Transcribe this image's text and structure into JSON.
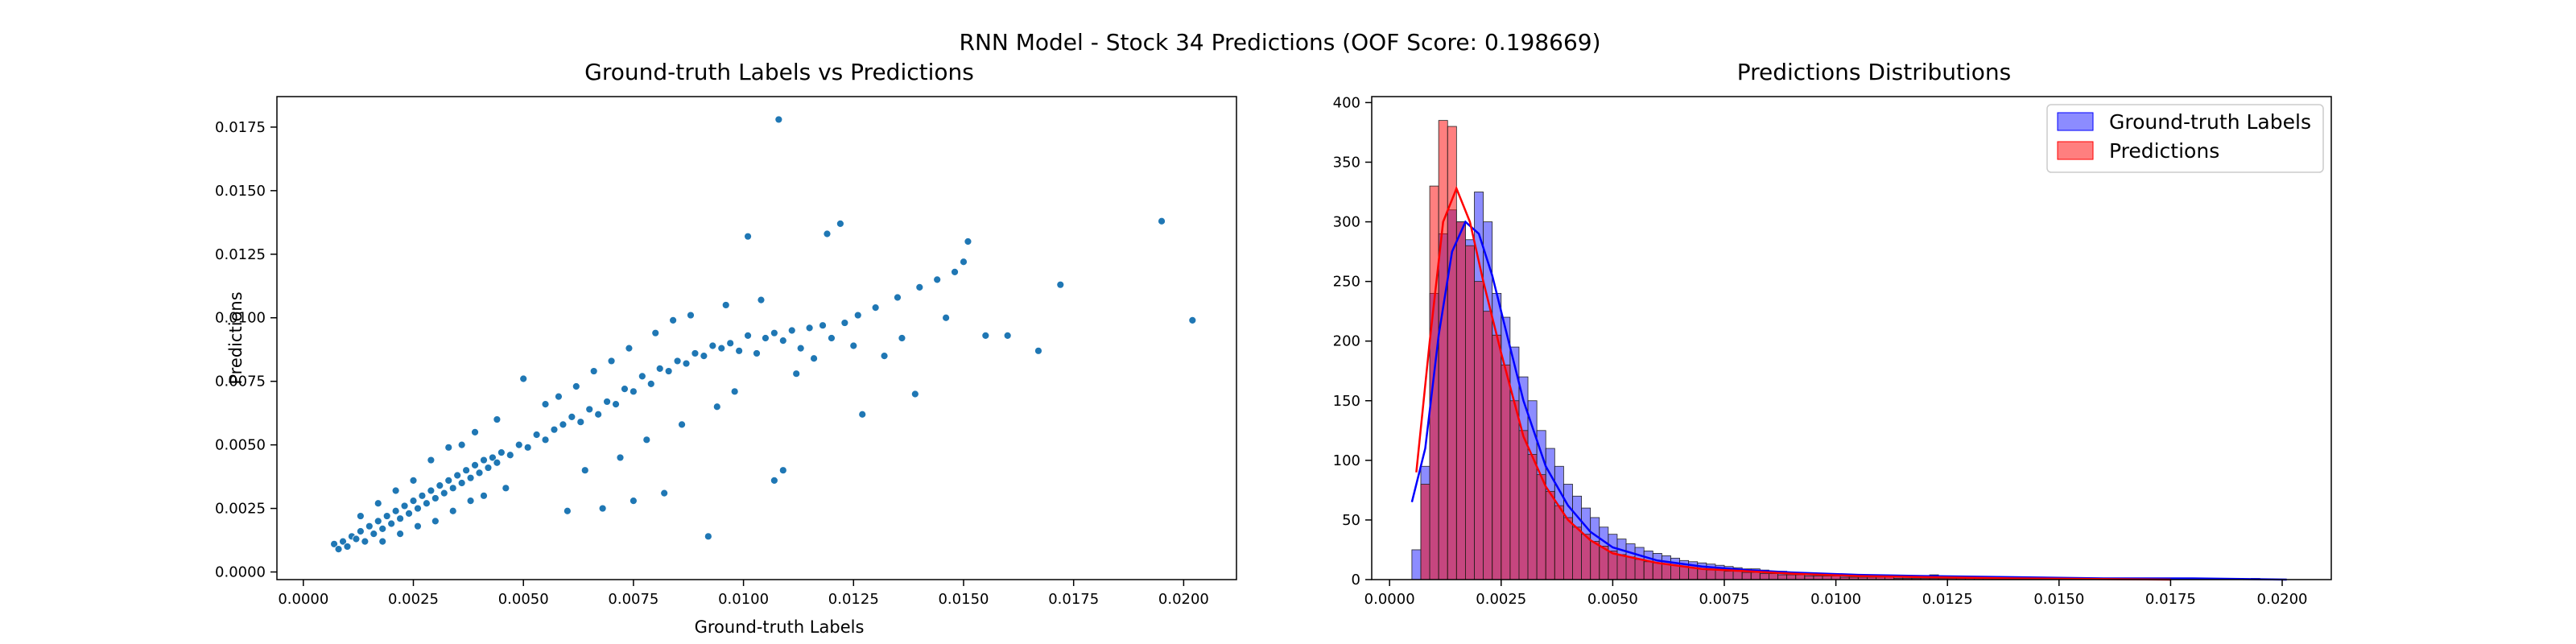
{
  "figure": {
    "suptitle": "RNN Model - Stock 34 Predictions (OOF Score: 0.198669)"
  },
  "chart_data": [
    {
      "type": "scatter",
      "title": "Ground-truth Labels vs Predictions",
      "xlabel": "Ground-truth Labels",
      "ylabel": "Predictions",
      "xlim": [
        -0.0006,
        0.0212
      ],
      "ylim": [
        -0.0003,
        0.0187
      ],
      "xticks": [
        0.0,
        0.0025,
        0.005,
        0.0075,
        0.01,
        0.0125,
        0.015,
        0.0175,
        0.02
      ],
      "xtick_labels": [
        "0.0000",
        "0.0025",
        "0.0050",
        "0.0075",
        "0.0100",
        "0.0125",
        "0.0150",
        "0.0175",
        "0.0200"
      ],
      "yticks": [
        0.0,
        0.0025,
        0.005,
        0.0075,
        0.01,
        0.0125,
        0.015,
        0.0175
      ],
      "ytick_labels": [
        "0.0000",
        "0.0025",
        "0.0050",
        "0.0075",
        "0.0100",
        "0.0125",
        "0.0150",
        "0.0175"
      ],
      "grid": false,
      "color": "#1f77b4",
      "points": [
        [
          0.0007,
          0.0011
        ],
        [
          0.0008,
          0.0009
        ],
        [
          0.0009,
          0.0012
        ],
        [
          0.001,
          0.001
        ],
        [
          0.0011,
          0.0014
        ],
        [
          0.0012,
          0.0013
        ],
        [
          0.0013,
          0.0016
        ],
        [
          0.0014,
          0.0012
        ],
        [
          0.0015,
          0.0018
        ],
        [
          0.0016,
          0.0015
        ],
        [
          0.0017,
          0.002
        ],
        [
          0.0018,
          0.0017
        ],
        [
          0.0019,
          0.0022
        ],
        [
          0.002,
          0.0019
        ],
        [
          0.0021,
          0.0024
        ],
        [
          0.0022,
          0.0021
        ],
        [
          0.0023,
          0.0026
        ],
        [
          0.0024,
          0.0023
        ],
        [
          0.0025,
          0.0028
        ],
        [
          0.0026,
          0.0025
        ],
        [
          0.0027,
          0.003
        ],
        [
          0.0028,
          0.0027
        ],
        [
          0.0029,
          0.0032
        ],
        [
          0.003,
          0.0029
        ],
        [
          0.0031,
          0.0034
        ],
        [
          0.0032,
          0.0031
        ],
        [
          0.0033,
          0.0036
        ],
        [
          0.0034,
          0.0033
        ],
        [
          0.0035,
          0.0038
        ],
        [
          0.0036,
          0.0035
        ],
        [
          0.0037,
          0.004
        ],
        [
          0.0038,
          0.0037
        ],
        [
          0.0039,
          0.0042
        ],
        [
          0.004,
          0.0039
        ],
        [
          0.0041,
          0.0044
        ],
        [
          0.0042,
          0.0041
        ],
        [
          0.0043,
          0.0045
        ],
        [
          0.0044,
          0.0043
        ],
        [
          0.0045,
          0.0047
        ],
        [
          0.0047,
          0.0046
        ],
        [
          0.0049,
          0.005
        ],
        [
          0.0051,
          0.0049
        ],
        [
          0.0053,
          0.0054
        ],
        [
          0.0055,
          0.0052
        ],
        [
          0.0057,
          0.0056
        ],
        [
          0.0059,
          0.0058
        ],
        [
          0.0061,
          0.0061
        ],
        [
          0.0063,
          0.0059
        ],
        [
          0.0065,
          0.0064
        ],
        [
          0.0067,
          0.0062
        ],
        [
          0.0069,
          0.0067
        ],
        [
          0.0071,
          0.0066
        ],
        [
          0.0073,
          0.0072
        ],
        [
          0.0075,
          0.0071
        ],
        [
          0.0077,
          0.0077
        ],
        [
          0.0079,
          0.0074
        ],
        [
          0.0081,
          0.008
        ],
        [
          0.0083,
          0.0079
        ],
        [
          0.0085,
          0.0083
        ],
        [
          0.0087,
          0.0082
        ],
        [
          0.0089,
          0.0086
        ],
        [
          0.0091,
          0.0085
        ],
        [
          0.0093,
          0.0089
        ],
        [
          0.0095,
          0.0088
        ],
        [
          0.0097,
          0.009
        ],
        [
          0.0099,
          0.0087
        ],
        [
          0.0101,
          0.0093
        ],
        [
          0.0103,
          0.0086
        ],
        [
          0.0105,
          0.0092
        ],
        [
          0.0107,
          0.0094
        ],
        [
          0.0109,
          0.0091
        ],
        [
          0.0111,
          0.0095
        ],
        [
          0.0113,
          0.0088
        ],
        [
          0.0115,
          0.0096
        ],
        [
          0.0118,
          0.0097
        ],
        [
          0.012,
          0.0092
        ],
        [
          0.0123,
          0.0098
        ],
        [
          0.0126,
          0.0101
        ],
        [
          0.013,
          0.0104
        ],
        [
          0.0135,
          0.0108
        ],
        [
          0.014,
          0.0112
        ],
        [
          0.0144,
          0.0115
        ],
        [
          0.0148,
          0.0118
        ],
        [
          0.015,
          0.0122
        ],
        [
          0.0155,
          0.0093
        ],
        [
          0.016,
          0.0093
        ],
        [
          0.0167,
          0.0087
        ],
        [
          0.0172,
          0.0113
        ],
        [
          0.0195,
          0.0138
        ],
        [
          0.0202,
          0.0099
        ],
        [
          0.0108,
          0.0178
        ],
        [
          0.0101,
          0.0132
        ],
        [
          0.0119,
          0.0133
        ],
        [
          0.0122,
          0.0137
        ],
        [
          0.0151,
          0.013
        ],
        [
          0.0092,
          0.0014
        ],
        [
          0.0109,
          0.004
        ],
        [
          0.0107,
          0.0036
        ],
        [
          0.0139,
          0.007
        ],
        [
          0.0127,
          0.0062
        ],
        [
          0.0075,
          0.0028
        ],
        [
          0.0082,
          0.0031
        ],
        [
          0.0068,
          0.0025
        ],
        [
          0.006,
          0.0024
        ],
        [
          0.0055,
          0.0066
        ],
        [
          0.005,
          0.0076
        ],
        [
          0.0044,
          0.006
        ],
        [
          0.0039,
          0.0055
        ],
        [
          0.0033,
          0.0049
        ],
        [
          0.0029,
          0.0044
        ],
        [
          0.0025,
          0.0036
        ],
        [
          0.0021,
          0.0032
        ],
        [
          0.0017,
          0.0027
        ],
        [
          0.0013,
          0.0022
        ],
        [
          0.0036,
          0.005
        ],
        [
          0.0041,
          0.003
        ],
        [
          0.0046,
          0.0033
        ],
        [
          0.0038,
          0.0028
        ],
        [
          0.0034,
          0.0024
        ],
        [
          0.003,
          0.002
        ],
        [
          0.0026,
          0.0018
        ],
        [
          0.0022,
          0.0015
        ],
        [
          0.0018,
          0.0012
        ],
        [
          0.0064,
          0.004
        ],
        [
          0.0072,
          0.0045
        ],
        [
          0.0078,
          0.0052
        ],
        [
          0.0086,
          0.0058
        ],
        [
          0.0094,
          0.0065
        ],
        [
          0.0098,
          0.0071
        ],
        [
          0.0112,
          0.0078
        ],
        [
          0.0116,
          0.0084
        ],
        [
          0.0125,
          0.0089
        ],
        [
          0.0132,
          0.0085
        ],
        [
          0.0136,
          0.0092
        ],
        [
          0.0146,
          0.01
        ],
        [
          0.0058,
          0.0069
        ],
        [
          0.0062,
          0.0073
        ],
        [
          0.0066,
          0.0079
        ],
        [
          0.007,
          0.0083
        ],
        [
          0.0074,
          0.0088
        ],
        [
          0.008,
          0.0094
        ],
        [
          0.0084,
          0.0099
        ],
        [
          0.0088,
          0.0101
        ],
        [
          0.0096,
          0.0105
        ],
        [
          0.0104,
          0.0107
        ]
      ]
    },
    {
      "type": "histogram",
      "title": "Predictions Distributions",
      "xlabel": "",
      "ylabel": "",
      "xlim": [
        -0.0004,
        0.0211
      ],
      "ylim": [
        0,
        405
      ],
      "xticks": [
        0.0,
        0.0025,
        0.005,
        0.0075,
        0.01,
        0.0125,
        0.015,
        0.0175,
        0.02
      ],
      "xtick_labels": [
        "0.0000",
        "0.0025",
        "0.0050",
        "0.0075",
        "0.0100",
        "0.0125",
        "0.0150",
        "0.0175",
        "0.0200"
      ],
      "yticks": [
        0,
        50,
        100,
        150,
        200,
        250,
        300,
        350,
        400
      ],
      "ytick_labels": [
        "0",
        "50",
        "100",
        "150",
        "200",
        "250",
        "300",
        "350",
        "400"
      ],
      "grid": false,
      "legend_position": "top-right",
      "bin_start": 0.0005,
      "bin_width": 0.0002,
      "series": [
        {
          "name": "Ground-truth Labels",
          "color": "#0000ff",
          "kde": [
            [
              0.0005,
              65
            ],
            [
              0.0008,
              110
            ],
            [
              0.0011,
              205
            ],
            [
              0.0014,
              275
            ],
            [
              0.0017,
              300
            ],
            [
              0.002,
              290
            ],
            [
              0.0023,
              255
            ],
            [
              0.0026,
              210
            ],
            [
              0.003,
              150
            ],
            [
              0.0035,
              95
            ],
            [
              0.004,
              62
            ],
            [
              0.0045,
              40
            ],
            [
              0.005,
              27
            ],
            [
              0.006,
              16
            ],
            [
              0.007,
              11
            ],
            [
              0.008,
              8
            ],
            [
              0.009,
              6
            ],
            [
              0.0105,
              4
            ],
            [
              0.012,
              3
            ],
            [
              0.014,
              2
            ],
            [
              0.016,
              1
            ],
            [
              0.018,
              1
            ],
            [
              0.0201,
              0
            ]
          ],
          "counts": [
            25,
            95,
            240,
            290,
            310,
            300,
            285,
            325,
            300,
            240,
            220,
            195,
            170,
            150,
            125,
            110,
            95,
            80,
            70,
            60,
            52,
            44,
            38,
            34,
            30,
            27,
            24,
            22,
            20,
            18,
            16,
            15,
            14,
            13,
            12,
            11,
            10,
            9,
            9,
            8,
            7,
            7,
            6,
            6,
            5,
            5,
            5,
            4,
            4,
            4,
            3,
            3,
            3,
            3,
            3,
            2,
            2,
            2,
            4,
            2,
            2,
            2,
            1,
            1,
            1,
            1,
            1,
            1,
            1,
            1,
            1,
            1,
            1,
            1,
            1,
            0,
            1,
            0,
            1,
            0,
            0,
            0,
            0,
            0,
            0,
            0,
            0,
            0,
            0,
            0,
            0,
            0,
            0,
            0,
            1,
            0,
            0,
            0
          ]
        },
        {
          "name": "Predictions",
          "color": "#ff0000",
          "kde": [
            [
              0.0006,
              90
            ],
            [
              0.0009,
              200
            ],
            [
              0.0012,
              300
            ],
            [
              0.0015,
              328
            ],
            [
              0.0018,
              300
            ],
            [
              0.0021,
              250
            ],
            [
              0.0025,
              190
            ],
            [
              0.003,
              120
            ],
            [
              0.0035,
              78
            ],
            [
              0.004,
              50
            ],
            [
              0.0045,
              33
            ],
            [
              0.005,
              22
            ],
            [
              0.006,
              14
            ],
            [
              0.007,
              9
            ],
            [
              0.008,
              7
            ],
            [
              0.009,
              5
            ],
            [
              0.0105,
              3
            ],
            [
              0.012,
              2
            ],
            [
              0.014,
              1
            ],
            [
              0.0175,
              0
            ]
          ],
          "counts": [
            0,
            80,
            330,
            385,
            380,
            300,
            280,
            250,
            225,
            205,
            180,
            150,
            125,
            105,
            88,
            74,
            62,
            52,
            44,
            38,
            32,
            28,
            24,
            21,
            19,
            17,
            15,
            14,
            13,
            12,
            11,
            10,
            9,
            8,
            8,
            7,
            7,
            6,
            6,
            5,
            5,
            4,
            4,
            4,
            3,
            3,
            3,
            3,
            2,
            2,
            2,
            2,
            2,
            2,
            1,
            1,
            1,
            1,
            1,
            1,
            1,
            1,
            1,
            1,
            1,
            1,
            1,
            0,
            0,
            0,
            0,
            0,
            0,
            0,
            0,
            0,
            0,
            0,
            0,
            0,
            0,
            0,
            0,
            0,
            0,
            0,
            0,
            0,
            0,
            0,
            0,
            0,
            0,
            0,
            0,
            0,
            0,
            0
          ]
        }
      ]
    }
  ]
}
